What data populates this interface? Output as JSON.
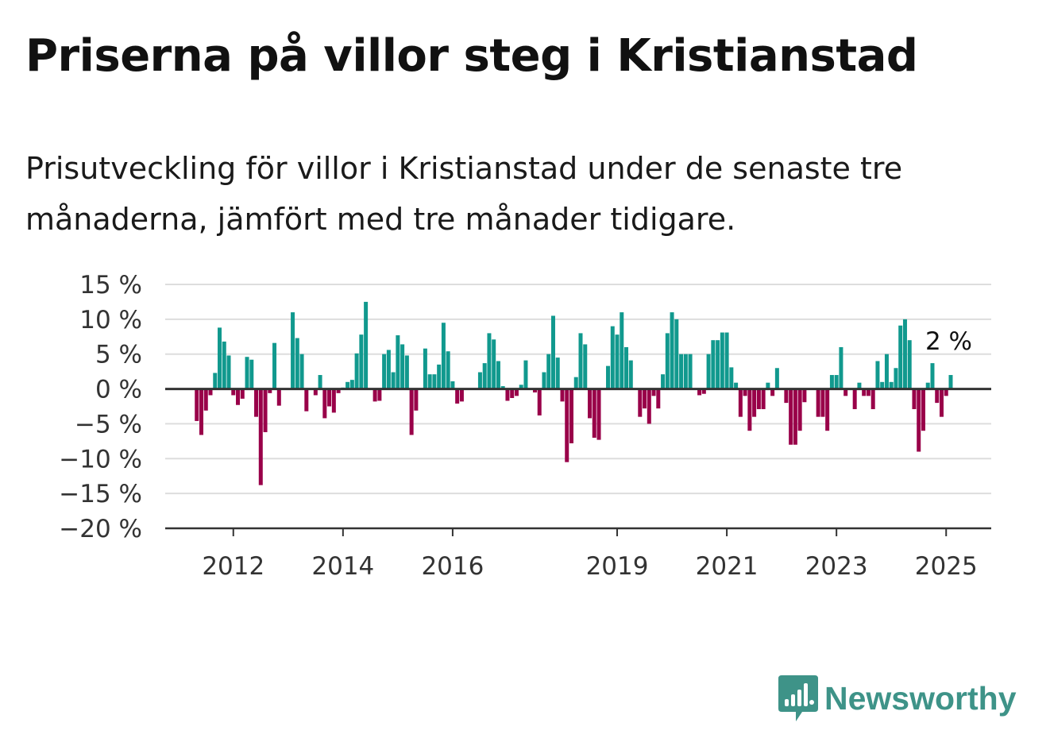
{
  "header": {
    "title": "Priserna på villor steg i Kristianstad",
    "subtitle": "Prisutveckling för villor i Kristianstad under de senaste tre månaderna, jämfört med tre månader tidigare."
  },
  "brand": {
    "name": "Newsworthy",
    "icon": "newsworthy-logo-icon",
    "color": "#3e9388"
  },
  "chart_data": {
    "type": "bar",
    "title": "",
    "xlabel": "",
    "ylabel": "",
    "ylim": [
      -20,
      15
    ],
    "grid": true,
    "legend": "none",
    "colors": {
      "positive": "#11998e",
      "negative": "#990049",
      "grid": "#dddddd",
      "axis": "#333333"
    },
    "y_ticks": [
      15,
      10,
      5,
      0,
      -5,
      -10,
      -15,
      -20
    ],
    "y_tick_labels": [
      "15 %",
      "10 %",
      "5 %",
      "0 %",
      "−5 %",
      "−10 %",
      "−15 %",
      "−20 %"
    ],
    "x_ticks": [
      {
        "date": "2012-01",
        "label": "2012"
      },
      {
        "date": "2014-01",
        "label": "2014"
      },
      {
        "date": "2016-01",
        "label": "2016"
      },
      {
        "date": "2019-01",
        "label": "2019"
      },
      {
        "date": "2021-01",
        "label": "2021"
      },
      {
        "date": "2023-01",
        "label": "2023"
      },
      {
        "date": "2025-01",
        "label": "2025"
      }
    ],
    "start": "2011-05",
    "values": [
      -4.6,
      -6.6,
      -3.1,
      -0.9,
      2.3,
      8.8,
      6.8,
      4.8,
      -0.9,
      -2.3,
      -1.4,
      4.6,
      4.2,
      -4.0,
      -13.8,
      -6.2,
      -0.6,
      6.6,
      -2.4,
      0.0,
      0.0,
      11.0,
      7.3,
      5.0,
      -3.2,
      0.0,
      -0.9,
      2.0,
      -4.2,
      -2.5,
      -3.4,
      -0.6,
      0.2,
      1.0,
      1.3,
      5.1,
      7.8,
      12.5,
      0.0,
      -1.8,
      -1.7,
      5.0,
      5.6,
      2.4,
      7.7,
      6.4,
      4.8,
      -6.6,
      -3.1,
      0.0,
      5.8,
      2.1,
      2.1,
      3.5,
      9.5,
      5.4,
      1.1,
      -2.1,
      -1.8,
      0.0,
      0.0,
      0.0,
      2.4,
      3.7,
      8.0,
      7.1,
      4.0,
      0.4,
      -1.7,
      -1.3,
      -1.0,
      0.6,
      4.1,
      0.0,
      -0.5,
      -3.8,
      2.4,
      5.0,
      10.5,
      4.5,
      -1.8,
      -10.5,
      -7.8,
      1.7,
      8.0,
      6.4,
      -4.2,
      -7.0,
      -7.3,
      0.0,
      3.3,
      9.0,
      7.8,
      11.0,
      6.0,
      4.1,
      0.0,
      -4.0,
      -2.8,
      -5.0,
      -1.0,
      -2.8,
      2.1,
      8.0,
      11.0,
      10.0,
      5.0,
      5.0,
      5.0,
      0.0,
      -0.9,
      -0.7,
      5.0,
      7.0,
      7.0,
      8.1,
      8.1,
      3.1,
      0.9,
      -4.0,
      -1.0,
      -6.0,
      -4.0,
      -2.9,
      -2.9,
      0.9,
      -1.0,
      3.0,
      0.0,
      -2.0,
      -8.0,
      -8.0,
      -6.0,
      -1.9,
      0.0,
      0.0,
      -4.0,
      -4.0,
      -6.0,
      2.0,
      2.0,
      6.0,
      -1.0,
      0.0,
      -2.9,
      0.9,
      -1.0,
      -1.0,
      -2.9,
      4.0,
      1.0,
      5.0,
      1.0,
      3.0,
      9.1,
      10.0,
      7.0,
      -2.9,
      -9.0,
      -6.0,
      0.9,
      3.7,
      -2.0,
      -4.0,
      -1.0,
      2.0
    ],
    "annotations": [
      {
        "text": "2 %"
      }
    ]
  }
}
